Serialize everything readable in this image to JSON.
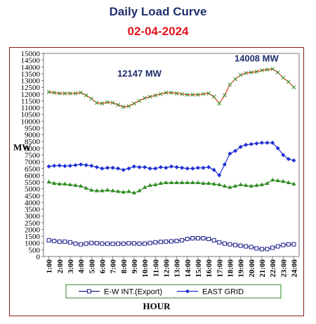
{
  "title": "Daily Load Curve",
  "date": "02-04-2024",
  "chart_data": {
    "type": "line",
    "title": "Daily Load Curve",
    "subtitle": "02-04-2024",
    "xlabel": "HOUR",
    "ylabel": "MW",
    "ylim": [
      0,
      15000
    ],
    "ytick_step": 500,
    "grid": false,
    "legend_position": "bottom",
    "categories": [
      "1:00",
      "2:00",
      "3:00",
      "4:00",
      "5:00",
      "6:00",
      "7:00",
      "8:00",
      "9:00",
      "10:00",
      "11:00",
      "12:00",
      "13:00",
      "14:00",
      "15:00",
      "16:00",
      "17:00",
      "18:00",
      "19:00",
      "20:00",
      "21:00",
      "22:00",
      "23:00",
      "24:00"
    ],
    "x": [
      1,
      1.5,
      2,
      2.5,
      3,
      3.5,
      4,
      4.5,
      5,
      5.5,
      6,
      6.5,
      7,
      7.5,
      8,
      8.5,
      9,
      9.5,
      10,
      10.5,
      11,
      11.5,
      12,
      12.5,
      13,
      13.5,
      14,
      14.5,
      15,
      15.5,
      16,
      16.5,
      17,
      17.5,
      18,
      18.5,
      19,
      19.5,
      20,
      20.5,
      21,
      21.5,
      22,
      22.5,
      23,
      23.5,
      24
    ],
    "series": [
      {
        "name": "E-W INT.(Export)",
        "color": "#1a1a8c",
        "marker": "square-open",
        "in_legend": true,
        "values": [
          1200,
          1150,
          1100,
          1100,
          1050,
          950,
          900,
          950,
          1000,
          980,
          950,
          950,
          940,
          950,
          950,
          980,
          970,
          950,
          950,
          1000,
          1050,
          1080,
          1100,
          1120,
          1150,
          1200,
          1300,
          1350,
          1350,
          1350,
          1300,
          1200,
          1050,
          950,
          900,
          850,
          800,
          750,
          700,
          600,
          550,
          550,
          650,
          750,
          850,
          900,
          900
        ]
      },
      {
        "name": "EAST GRID",
        "color": "#1e2fd4",
        "marker": "diamond",
        "in_legend": true,
        "values": [
          6650,
          6700,
          6720,
          6680,
          6700,
          6750,
          6800,
          6750,
          6700,
          6600,
          6500,
          6550,
          6550,
          6500,
          6400,
          6500,
          6650,
          6600,
          6600,
          6500,
          6500,
          6600,
          6550,
          6650,
          6600,
          6550,
          6500,
          6500,
          6550,
          6550,
          6600,
          6400,
          6000,
          6800,
          7600,
          7800,
          8100,
          8250,
          8300,
          8350,
          8400,
          8400,
          8400,
          8000,
          7500,
          7200,
          7100
        ]
      },
      {
        "name": "",
        "color": "#2e8b22",
        "marker": "triangle",
        "in_legend": false,
        "values": [
          5500,
          5400,
          5350,
          5350,
          5300,
          5250,
          5200,
          5050,
          4900,
          4850,
          4850,
          4900,
          4850,
          4800,
          4750,
          4800,
          4700,
          4850,
          5100,
          5250,
          5300,
          5400,
          5450,
          5450,
          5450,
          5450,
          5450,
          5450,
          5450,
          5400,
          5400,
          5350,
          5300,
          5200,
          5100,
          5200,
          5300,
          5250,
          5200,
          5250,
          5300,
          5400,
          5650,
          5600,
          5550,
          5450,
          5350
        ]
      },
      {
        "name": "",
        "color": "#e23a1c",
        "marker": "x",
        "in_legend": false,
        "values": [
          12150,
          12100,
          12050,
          12050,
          12050,
          12050,
          12100,
          11900,
          11650,
          11350,
          11300,
          11400,
          11350,
          11200,
          11050,
          11100,
          11300,
          11500,
          11700,
          11800,
          11900,
          12000,
          12100,
          12100,
          12050,
          12000,
          11950,
          11950,
          11950,
          12000,
          12050,
          11800,
          11300,
          11900,
          12700,
          13100,
          13400,
          13550,
          13600,
          13650,
          13750,
          13800,
          13850,
          13600,
          13200,
          12900,
          12500
        ]
      }
    ],
    "annotations": [
      {
        "text": "12147 MW",
        "x": 9.5,
        "y": 13300
      },
      {
        "text": "14008 MW",
        "x": 20.5,
        "y": 14400
      }
    ]
  }
}
